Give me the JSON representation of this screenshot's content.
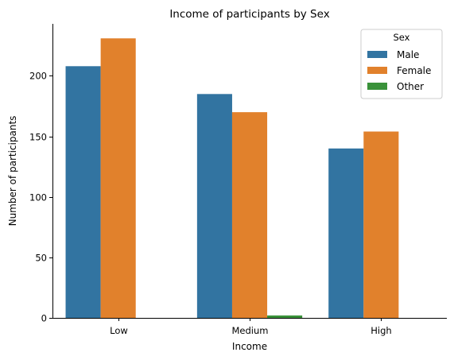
{
  "chart_data": {
    "type": "bar",
    "title": "Income of participants by Sex",
    "xlabel": "Income",
    "ylabel": "Number of participants",
    "categories": [
      "Low",
      "Medium",
      "High"
    ],
    "series": [
      {
        "name": "Male",
        "color": "#3274a1",
        "values": [
          208,
          185,
          140
        ]
      },
      {
        "name": "Female",
        "color": "#e1812c",
        "values": [
          231,
          170,
          154
        ]
      },
      {
        "name": "Other",
        "color": "#3a923a",
        "values": [
          0,
          2,
          0
        ]
      }
    ],
    "ylim": [
      0,
      243
    ],
    "yticks": [
      0,
      50,
      100,
      150,
      200
    ],
    "grid": false,
    "legend": {
      "title": "Sex",
      "placement": "top-right"
    }
  }
}
